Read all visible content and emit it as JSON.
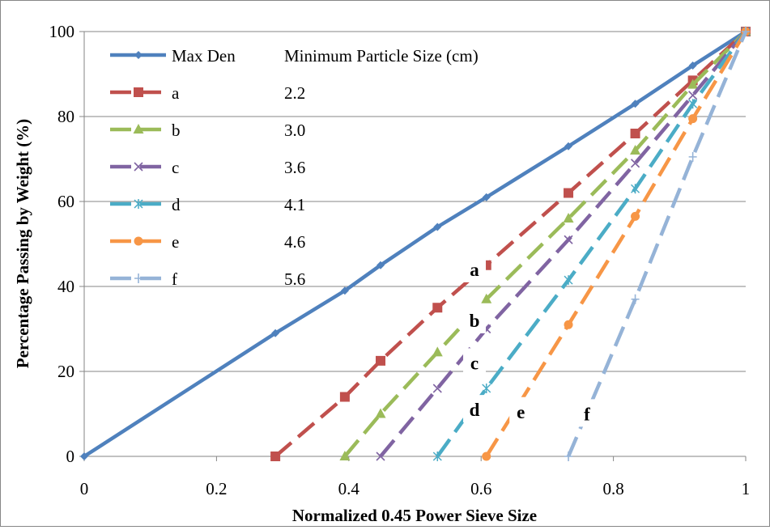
{
  "chart_data": {
    "type": "line",
    "xlabel": "Normalized 0.45 Power Sieve Size",
    "ylabel": "Percentage Passing by Weight (%)",
    "xlim": [
      0,
      1
    ],
    "ylim": [
      0,
      100
    ],
    "xticks": [
      "0",
      "0.2",
      "0.4",
      "0.6",
      "0.8",
      "1"
    ],
    "yticks": [
      "0",
      "20",
      "40",
      "60",
      "80",
      "100"
    ],
    "grid": "horizontal",
    "legend": {
      "placement": "top-left",
      "header": "Minimum Particle Size (cm)"
    },
    "series": [
      {
        "name": "Max Den",
        "size": "",
        "color": "#4F81BD",
        "marker": "diamond",
        "dashed": false,
        "x": [
          0,
          0.289,
          0.394,
          0.448,
          0.534,
          0.608,
          0.732,
          0.833,
          0.92,
          1
        ],
        "y": [
          0,
          29,
          39,
          45,
          54,
          61,
          73,
          83,
          92,
          100
        ]
      },
      {
        "name": "a",
        "size": "2.2",
        "color": "#C0504D",
        "marker": "square",
        "dashed": true,
        "x": [
          0.289,
          0.394,
          0.448,
          0.534,
          0.608,
          0.732,
          0.833,
          0.92,
          1
        ],
        "y": [
          0,
          14,
          22.5,
          35,
          45,
          62,
          76,
          88.5,
          100
        ]
      },
      {
        "name": "b",
        "size": "3.0",
        "color": "#9BBB59",
        "marker": "triangle",
        "dashed": true,
        "x": [
          0.394,
          0.448,
          0.534,
          0.608,
          0.732,
          0.833,
          0.92,
          1
        ],
        "y": [
          0,
          10,
          24.5,
          37,
          56,
          72,
          87.5,
          100
        ]
      },
      {
        "name": "c",
        "size": "3.6",
        "color": "#8064A2",
        "marker": "x",
        "dashed": true,
        "x": [
          0.448,
          0.534,
          0.608,
          0.732,
          0.833,
          0.92,
          1
        ],
        "y": [
          0,
          16,
          30,
          51,
          69,
          85,
          100
        ]
      },
      {
        "name": "d",
        "size": "4.1",
        "color": "#4BACC6",
        "marker": "star",
        "dashed": true,
        "x": [
          0.534,
          0.608,
          0.732,
          0.833,
          0.92,
          1
        ],
        "y": [
          0,
          16,
          41.5,
          63,
          83,
          100
        ]
      },
      {
        "name": "e",
        "size": "4.6",
        "color": "#F79646",
        "marker": "circle",
        "dashed": true,
        "x": [
          0.608,
          0.732,
          0.833,
          0.92,
          1
        ],
        "y": [
          0,
          31,
          56.5,
          79.5,
          100
        ]
      },
      {
        "name": "f",
        "size": "5.6",
        "color": "#95B3D7",
        "marker": "plus",
        "dashed": true,
        "x": [
          0.732,
          0.833,
          0.92,
          1
        ],
        "y": [
          0,
          37,
          70.5,
          100
        ]
      }
    ],
    "annotations": [
      {
        "text": "a",
        "x": 0.59,
        "y": 42.5
      },
      {
        "text": "b",
        "x": 0.59,
        "y": 30.5
      },
      {
        "text": "c",
        "x": 0.59,
        "y": 20.5
      },
      {
        "text": "d",
        "x": 0.59,
        "y": 9.5
      },
      {
        "text": "e",
        "x": 0.66,
        "y": 9.0
      },
      {
        "text": "f",
        "x": 0.76,
        "y": 8.5
      }
    ]
  }
}
